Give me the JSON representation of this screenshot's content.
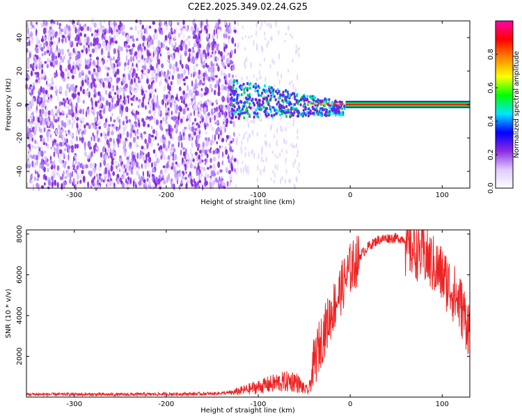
{
  "title": "C2E2.2025.349.02.24.G25",
  "chart_data": [
    {
      "type": "heatmap",
      "name": "spectrogram",
      "xlabel": "Height of straight line (km)",
      "ylabel": "Frequency (Hz)",
      "xlim": [
        -352,
        130
      ],
      "ylim": [
        -50,
        50
      ],
      "x_ticks": [
        -300,
        -200,
        -100,
        0,
        100
      ],
      "y_ticks": [
        -40,
        -20,
        0,
        20,
        40
      ],
      "colorbar": {
        "label": "Normalized spectral amplitude",
        "range": [
          0.0,
          1.0
        ],
        "ticks": [
          0.0,
          0.2,
          0.4,
          0.6,
          0.8
        ],
        "colormap": [
          "#ffffff",
          "#e0c8ff",
          "#8a2be2",
          "#0000ff",
          "#00e5ff",
          "#00ff00",
          "#ffff00",
          "#ff8800",
          "#ff0000",
          "#ff00aa"
        ]
      },
      "features": {
        "noise_region_x": [
          -352,
          -125
        ],
        "signal_onset_x": -130,
        "carrier_freq_hz": 0,
        "carrier_start_x": -5
      }
    },
    {
      "type": "line",
      "name": "snr",
      "xlabel": "Height of straight line (km)",
      "ylabel": "SNR (10 * v/v)",
      "xlim": [
        -352,
        130
      ],
      "ylim": [
        0,
        8200
      ],
      "x_ticks": [
        -300,
        -200,
        -100,
        0,
        100
      ],
      "y_ticks": [
        2000,
        4000,
        6000,
        8000
      ],
      "color": "#ee2222",
      "series": [
        {
          "name": "SNR",
          "x": [
            -352,
            -300,
            -250,
            -200,
            -150,
            -130,
            -120,
            -100,
            -80,
            -60,
            -50,
            -45,
            -40,
            -35,
            -30,
            -20,
            -10,
            0,
            10,
            20,
            30,
            40,
            50,
            60,
            70,
            80,
            90,
            100,
            110,
            120,
            130
          ],
          "y": [
            120,
            120,
            110,
            130,
            150,
            200,
            300,
            500,
            700,
            800,
            400,
            300,
            1500,
            2300,
            3000,
            4200,
            5300,
            6300,
            6800,
            7300,
            7600,
            7700,
            7700,
            7650,
            7550,
            7300,
            6800,
            6300,
            5600,
            4800,
            3600
          ]
        }
      ]
    }
  ]
}
